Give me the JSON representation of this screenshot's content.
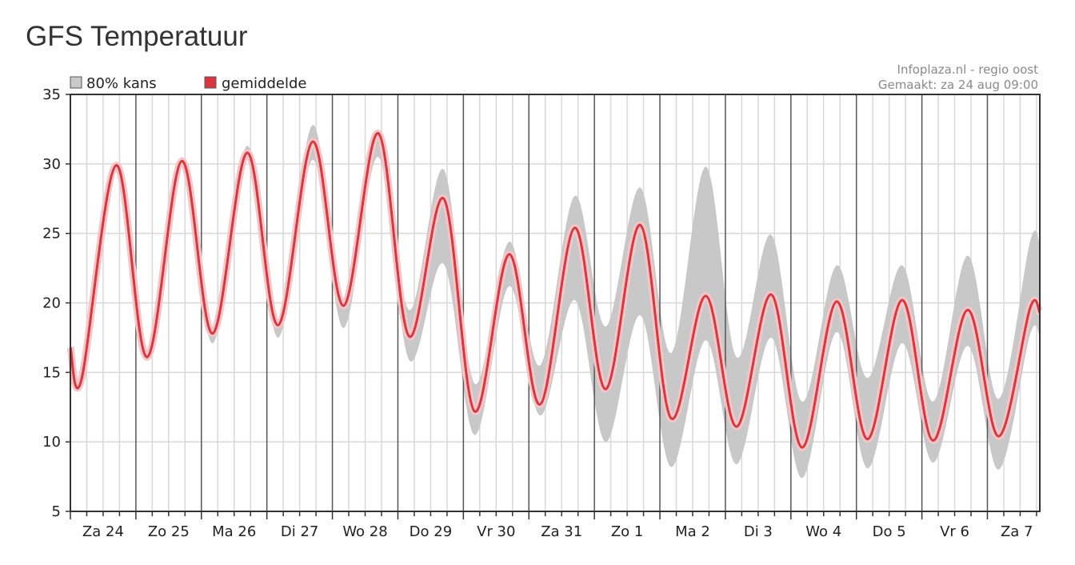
{
  "page": {
    "title": "GFS Temperatuur"
  },
  "chart_data": {
    "type": "line",
    "title": "",
    "source_line1": "Infoplaza.nl - regio oost",
    "source_line2": "Gemaakt: za 24 aug 09:00",
    "legend": [
      {
        "label": "80% kans",
        "color": "#c8c8c8"
      },
      {
        "label": "gemiddelde",
        "color": "#d9363e"
      }
    ],
    "legend_position": "top-left",
    "xlim": [
      0,
      14.8
    ],
    "ylim": [
      5,
      35
    ],
    "yticks": [
      5,
      10,
      15,
      20,
      25,
      30,
      35
    ],
    "day_labels": [
      "Za 24",
      "Zo 25",
      "Ma 26",
      "Di 27",
      "Wo 28",
      "Do 29",
      "Vr 30",
      "Za 31",
      "Zo 1",
      "Ma 2",
      "Di 3",
      "Wo 4",
      "Do 5",
      "Vr 6",
      "Za 7"
    ],
    "grid": true,
    "colors": {
      "band": "#c8c8c8",
      "mean": "#d9363e",
      "mean_glow": "#f3c6c9",
      "grid": "#d8d8d8",
      "day_line": "#555555"
    },
    "series": [
      {
        "name": "gemiddelde",
        "x": [
          0,
          0.17,
          0.7,
          1.17,
          1.7,
          2.17,
          2.7,
          3.17,
          3.7,
          4.17,
          4.7,
          5.17,
          5.7,
          6.17,
          6.7,
          7.17,
          7.7,
          8.17,
          8.7,
          9.17,
          9.7,
          10.17,
          10.7,
          11.17,
          11.7,
          12.17,
          12.7,
          13.17,
          13.7,
          14.17,
          14.65,
          14.8
        ],
        "values": [
          16.8,
          14.5,
          29.9,
          16.1,
          30.2,
          17.8,
          30.8,
          18.4,
          31.6,
          19.8,
          32.2,
          17.6,
          27.5,
          12.2,
          23.5,
          12.7,
          25.4,
          13.8,
          25.6,
          11.7,
          20.5,
          11.1,
          20.6,
          9.6,
          20.1,
          10.2,
          20.2,
          10.1,
          19.5,
          10.4,
          19.6,
          19.3
        ]
      },
      {
        "name": "80% kans (onder)",
        "x": [
          0,
          0.17,
          0.7,
          1.17,
          1.7,
          2.17,
          2.7,
          3.17,
          3.7,
          4.17,
          4.7,
          5.17,
          5.7,
          6.17,
          6.7,
          7.17,
          7.7,
          8.17,
          8.7,
          9.17,
          9.7,
          10.17,
          10.7,
          11.17,
          11.7,
          12.17,
          12.7,
          13.17,
          13.7,
          14.17,
          14.65,
          14.8
        ],
        "values": [
          16.4,
          14.3,
          29.4,
          15.9,
          29.8,
          17.1,
          30.3,
          17.5,
          30.3,
          18.2,
          30.5,
          15.9,
          22.8,
          10.5,
          21.2,
          11.9,
          20.2,
          10.0,
          19.1,
          8.2,
          17.3,
          8.4,
          17.5,
          7.4,
          17.9,
          8.1,
          17.1,
          8.5,
          16.9,
          8.0,
          17.7,
          17.6
        ]
      },
      {
        "name": "80% kans (boven)",
        "x": [
          0,
          0.17,
          0.7,
          1.17,
          1.7,
          2.17,
          2.7,
          3.17,
          3.7,
          4.17,
          4.7,
          5.17,
          5.7,
          6.17,
          6.7,
          7.17,
          7.7,
          8.17,
          8.7,
          9.17,
          9.7,
          10.17,
          10.7,
          11.17,
          11.7,
          12.17,
          12.7,
          13.17,
          13.7,
          14.17,
          14.65,
          14.8
        ],
        "values": [
          17.1,
          14.8,
          30.1,
          16.4,
          30.5,
          18.1,
          31.3,
          18.8,
          32.8,
          20.2,
          32.4,
          19.5,
          29.6,
          14.2,
          24.4,
          15.5,
          27.7,
          18.3,
          28.3,
          16.4,
          29.8,
          16.1,
          24.9,
          12.9,
          22.7,
          14.6,
          22.7,
          12.9,
          23.4,
          13.1,
          24.4,
          24.3
        ]
      }
    ]
  }
}
